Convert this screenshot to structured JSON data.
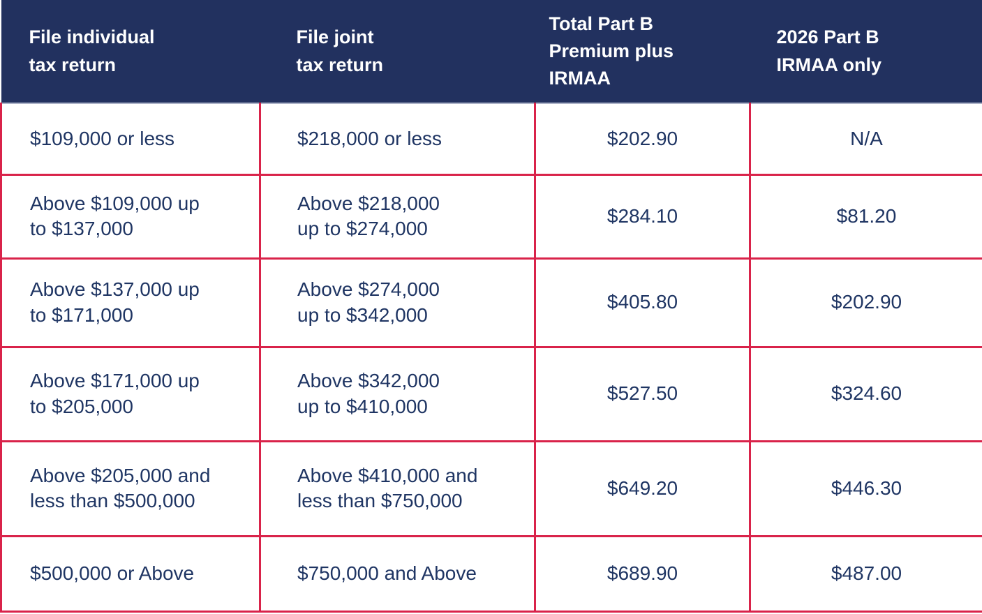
{
  "colors": {
    "header_bg": "#22315f",
    "header_text": "#ffffff",
    "body_text": "#1f3563",
    "border": "#d9234a",
    "cell_bg": "#ffffff"
  },
  "chart_data": {
    "type": "table",
    "title": "",
    "columns": [
      "File individual\ntax return",
      "File joint\ntax return",
      "Total Part B\nPremium plus\nIRMAA",
      "2026 Part B\nIRMAA only"
    ],
    "rows": [
      [
        "$109,000 or less",
        "$218,000 or less",
        "$202.90",
        "N/A"
      ],
      [
        "Above $109,000 up\nto $137,000",
        "Above $218,000\nup to $274,000",
        "$284.10",
        "$81.20"
      ],
      [
        "Above $137,000 up\nto $171,000",
        "Above $274,000\nup to $342,000",
        "$405.80",
        "$202.90"
      ],
      [
        "Above $171,000 up\nto $205,000",
        "Above $342,000\nup to $410,000",
        "$527.50",
        "$324.60"
      ],
      [
        "Above $205,000 and\nless than $500,000",
        "Above $410,000 and\nless than $750,000",
        "$649.20",
        "$446.30"
      ],
      [
        "$500,000 or Above",
        "$750,000 and Above",
        "$689.90",
        "$487.00"
      ]
    ]
  }
}
